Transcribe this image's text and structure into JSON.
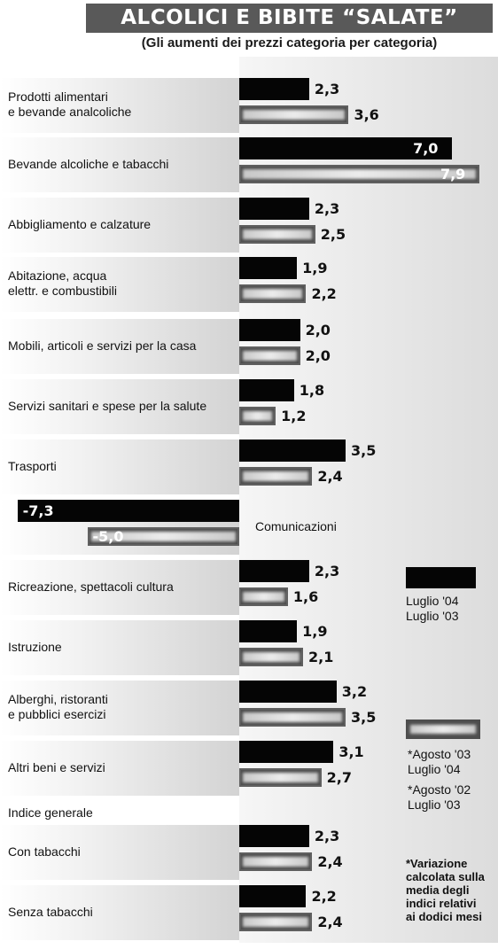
{
  "chart_data": {
    "type": "bar",
    "orientation": "horizontal",
    "title": "ALCOLICI E BIBITE “SALATE”",
    "subtitle": "(Gli aumenti dei prezzi categoria per categoria)",
    "categories": [
      "Prodotti alimentari\ne bevande analcoliche",
      "Bevande alcoliche e tabacchi",
      "Abbigliamento e calzature",
      "Abitazione, acqua\nelettr. e combustibili",
      "Mobili, articoli e servizi per la casa",
      "Servizi sanitari e spese per la salute",
      "Trasporti",
      "Comunicazioni",
      "Ricreazione, spettacoli cultura",
      "Istruzione",
      "Alberghi, ristoranti\ne pubblici esercizi",
      "Altri beni e servizi",
      "Con tabacchi",
      "Senza tabacchi"
    ],
    "section_label": "Indice generale",
    "series": [
      {
        "name": "Luglio '04\nLuglio '03",
        "color": "#050505",
        "values": [
          2.3,
          7.0,
          2.3,
          1.9,
          2.0,
          1.8,
          3.5,
          -7.3,
          2.3,
          1.9,
          3.2,
          3.1,
          2.3,
          2.2
        ],
        "labels": [
          "2,3",
          "7,0",
          "2,3",
          "1,9",
          "2,0",
          "1,8",
          "3,5",
          "-7,3",
          "2,3",
          "1,9",
          "3,2",
          "3,1",
          "2,3",
          "2,2"
        ]
      },
      {
        "name": "*Agosto '03\nLuglio '04",
        "color": "#4d4d4d",
        "values": [
          3.6,
          7.9,
          2.5,
          2.2,
          2.0,
          1.2,
          2.4,
          -5.0,
          1.6,
          2.1,
          3.5,
          2.7,
          2.4,
          2.4
        ],
        "labels": [
          "3,6",
          "7,9",
          "2,5",
          "2,2",
          "2,0",
          "1,2",
          "2,4",
          "-5,0",
          "1,6",
          "2,1",
          "3,5",
          "2,7",
          "2,4",
          "2,4"
        ]
      }
    ],
    "extra_legend": "*Agosto '02\nLuglio '03",
    "note": "*Variazione\ncalcolata sulla\nmedia degli\nindici relativi\nai dodici mesi"
  }
}
